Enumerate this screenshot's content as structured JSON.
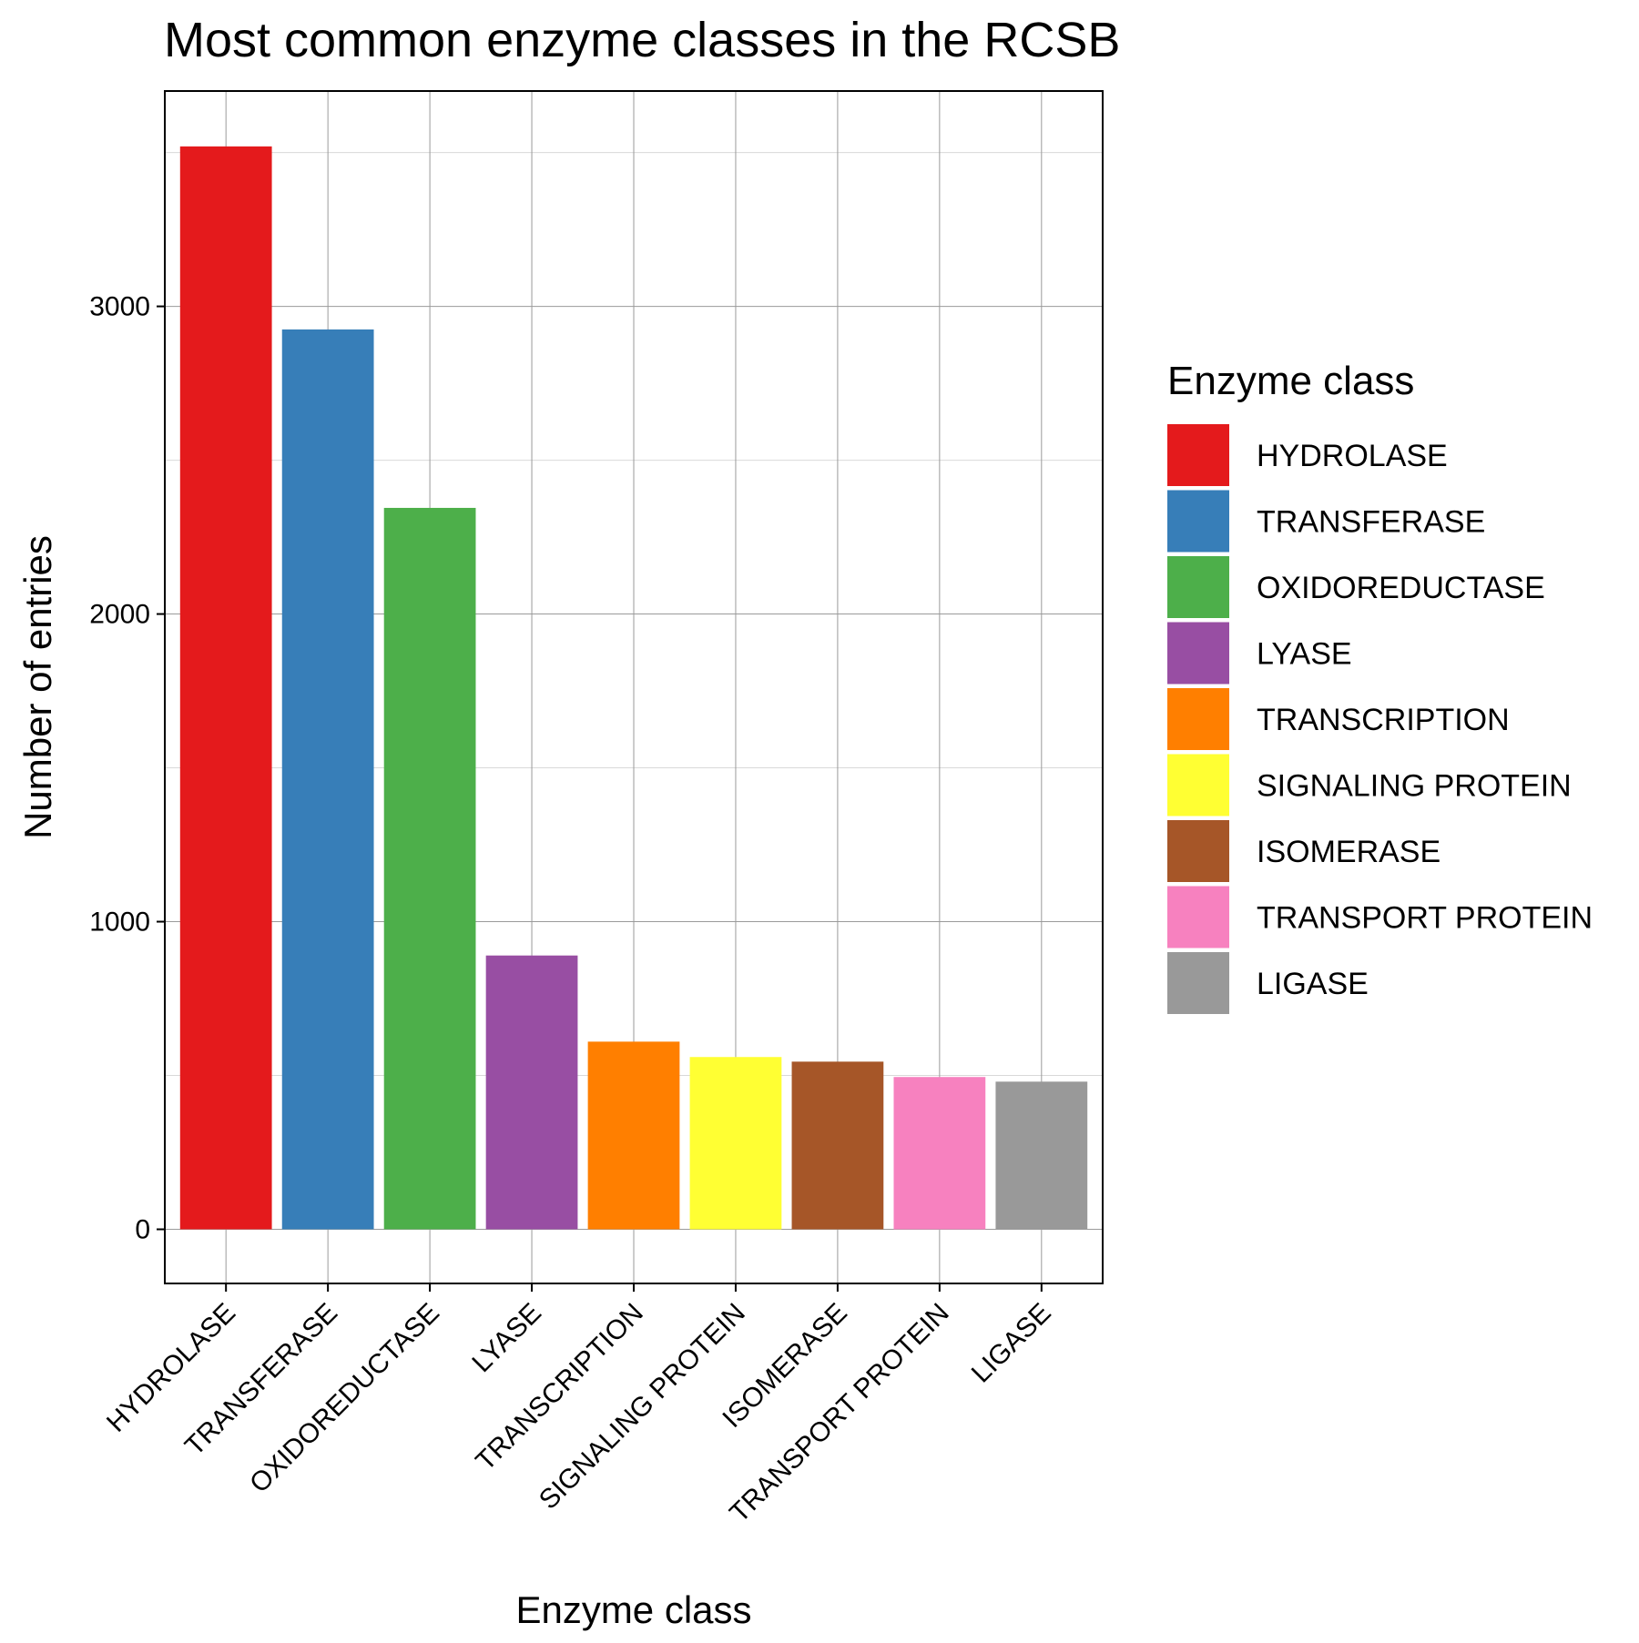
{
  "chart_data": {
    "type": "bar",
    "title": "Most common enzyme classes in the RCSB",
    "xlabel": "Enzyme class",
    "ylabel": "Number of entries",
    "categories": [
      "HYDROLASE",
      "TRANSFERASE",
      "OXIDOREDUCTASE",
      "LYASE",
      "TRANSCRIPTION",
      "SIGNALING PROTEIN",
      "ISOMERASE",
      "TRANSPORT PROTEIN",
      "LIGASE"
    ],
    "values": [
      3520,
      2925,
      2345,
      890,
      610,
      560,
      545,
      495,
      480
    ],
    "colors": [
      "#E41A1C",
      "#377EB8",
      "#4DAF4A",
      "#984EA3",
      "#FF7F00",
      "#FFFF33",
      "#A65628",
      "#F781BF",
      "#999999"
    ],
    "ylim": [
      -176,
      3700
    ],
    "yticks": [
      0,
      1000,
      2000,
      3000
    ],
    "ytick_labels": [
      "0",
      "1000",
      "2000",
      "3000"
    ],
    "minor_grid_y": [
      500,
      1500,
      2500,
      3500
    ],
    "grid": true,
    "legend": {
      "title": "Enzyme class",
      "placement": "right",
      "entries": [
        "HYDROLASE",
        "TRANSFERASE",
        "OXIDOREDUCTASE",
        "LYASE",
        "TRANSCRIPTION",
        "SIGNALING PROTEIN",
        "ISOMERASE",
        "TRANSPORT PROTEIN",
        "LIGASE"
      ]
    }
  }
}
